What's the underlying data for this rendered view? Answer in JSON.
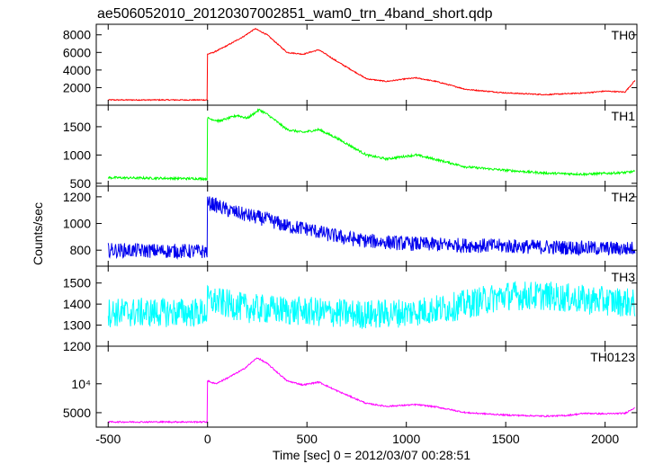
{
  "title": "ae506052010_20120307002851_wam0_trn_4band_short.qdp",
  "y_axis_label": "Counts/sec",
  "x_axis_label": "Time [sec] 0 = 2012/03/07 00:28:51",
  "chart_data": [
    {
      "type": "line",
      "name": "TH0",
      "color": "#ff0000",
      "noise": 60,
      "xlim": [
        -560,
        2160
      ],
      "ylim": [
        0,
        9200
      ],
      "yticks": [
        2000,
        4000,
        6000,
        8000
      ],
      "yticklabels": [
        "2000",
        "4000",
        "6000",
        "8000"
      ],
      "x": [
        -500,
        -1,
        0,
        30,
        100,
        180,
        240,
        300,
        400,
        480,
        560,
        650,
        800,
        900,
        1000,
        1050,
        1150,
        1300,
        1500,
        1700,
        1800,
        1900,
        2000,
        2100,
        2150
      ],
      "y": [
        600,
        600,
        5800,
        6000,
        6800,
        7800,
        8700,
        8000,
        6000,
        5800,
        6300,
        5000,
        3000,
        2700,
        3000,
        3100,
        2700,
        1800,
        1400,
        1200,
        1300,
        1400,
        1600,
        1500,
        2800
      ]
    },
    {
      "type": "line",
      "name": "TH1",
      "color": "#00ff00",
      "noise": 20,
      "xlim": [
        -560,
        2160
      ],
      "ylim": [
        450,
        1880
      ],
      "yticks": [
        500,
        1000,
        1500
      ],
      "yticklabels": [
        "500",
        "1000",
        "1500"
      ],
      "x": [
        -500,
        -1,
        0,
        60,
        150,
        200,
        260,
        300,
        400,
        480,
        560,
        650,
        800,
        900,
        1000,
        1050,
        1150,
        1300,
        1500,
        1700,
        1900,
        2100,
        2150
      ],
      "y": [
        600,
        580,
        1650,
        1600,
        1700,
        1650,
        1800,
        1720,
        1450,
        1400,
        1450,
        1300,
        1000,
        930,
        980,
        1000,
        920,
        790,
        730,
        680,
        660,
        690,
        710
      ]
    },
    {
      "type": "line",
      "name": "TH2",
      "color": "#0000ee",
      "noise": 55,
      "xlim": [
        -560,
        2160
      ],
      "ylim": [
        680,
        1280
      ],
      "yticks": [
        800,
        1000,
        1200
      ],
      "yticklabels": [
        "800",
        "1000",
        "1200"
      ],
      "x": [
        -500,
        -1,
        0,
        20,
        100,
        200,
        300,
        400,
        500,
        600,
        700,
        800,
        900,
        1000,
        1200,
        1500,
        1800,
        2100,
        2150
      ],
      "y": [
        800,
        790,
        1150,
        1150,
        1100,
        1060,
        1030,
        980,
        960,
        920,
        890,
        870,
        860,
        850,
        840,
        830,
        820,
        810,
        815
      ]
    },
    {
      "type": "line",
      "name": "TH3",
      "color": "#00ffff",
      "noise": 70,
      "xlim": [
        -560,
        2160
      ],
      "ylim": [
        1200,
        1580
      ],
      "yticks": [
        1200,
        1300,
        1400,
        1500
      ],
      "yticklabels": [
        "1200",
        "1300",
        "1400",
        "1500"
      ],
      "x": [
        -500,
        -1,
        0,
        50,
        200,
        400,
        600,
        800,
        1000,
        1200,
        1350,
        1500,
        1700,
        1900,
        2100,
        2150
      ],
      "y": [
        1360,
        1360,
        1420,
        1410,
        1380,
        1370,
        1360,
        1350,
        1360,
        1380,
        1410,
        1440,
        1440,
        1420,
        1410,
        1400
      ]
    },
    {
      "type": "line",
      "name": "TH0123",
      "color": "#ff00ff",
      "noise": 120,
      "xlim": [
        -560,
        2160
      ],
      "ylim": [
        2500,
        16500
      ],
      "yticks": [
        5000,
        10000
      ],
      "yticklabels": [
        "5000",
        "10⁴"
      ],
      "xticks": [
        -500,
        0,
        500,
        1000,
        1500,
        2000
      ],
      "xticklabels": [
        "-500",
        "0",
        "500",
        "1000",
        "1500",
        "2000"
      ],
      "x": [
        -500,
        -1,
        0,
        40,
        100,
        180,
        250,
        300,
        400,
        480,
        560,
        650,
        800,
        900,
        1000,
        1050,
        1150,
        1300,
        1500,
        1700,
        1800,
        1900,
        2000,
        2100,
        2150
      ],
      "y": [
        3400,
        3400,
        10500,
        10000,
        11000,
        12500,
        14500,
        13500,
        10500,
        9800,
        10300,
        8800,
        6600,
        6100,
        6300,
        6400,
        6000,
        5000,
        4600,
        4400,
        4500,
        4900,
        4800,
        4900,
        5900
      ]
    }
  ]
}
